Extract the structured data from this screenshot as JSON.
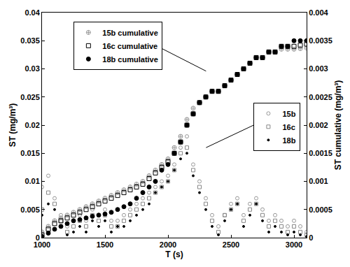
{
  "chart_data": {
    "type": "scatter",
    "x_label": "T (s)",
    "y_label": "ST (mg/m³)",
    "y2_label": "ST cumulative (mg/m³)",
    "xlim": [
      1000,
      3100
    ],
    "xticks": [
      1000,
      1500,
      2000,
      2500,
      3000
    ],
    "ylim": [
      0,
      0.04
    ],
    "yticks": [
      0,
      0.005,
      0.01,
      0.015,
      0.02,
      0.025,
      0.03,
      0.035,
      0.04
    ],
    "y2lim": [
      0,
      0.004
    ],
    "y2ticks": [
      0,
      0.0005,
      0.001,
      0.0015,
      0.002,
      0.0025,
      0.003,
      0.0035,
      0.004
    ],
    "grid": false,
    "legend": "top left",
    "x": [
      1000,
      1050,
      1100,
      1150,
      1200,
      1250,
      1300,
      1350,
      1400,
      1450,
      1500,
      1550,
      1600,
      1650,
      1700,
      1750,
      1800,
      1850,
      1900,
      1950,
      2000,
      2050,
      2100,
      2150,
      2200,
      2250,
      2300,
      2350,
      2400,
      2450,
      2500,
      2550,
      2600,
      2650,
      2700,
      2750,
      2800,
      2850,
      2900,
      2950,
      3000,
      3050,
      3100
    ],
    "series": [
      {
        "name": "15b cumulative",
        "axis": "y2",
        "color": "#999999",
        "marker": "circle-cross-open",
        "values": [
          0.0001,
          0.0002,
          0.0003,
          0.00035,
          0.0004,
          0.00045,
          0.0005,
          0.00055,
          0.0006,
          0.00065,
          0.0007,
          0.00075,
          0.0008,
          0.00085,
          0.0009,
          0.00095,
          0.001,
          0.0011,
          0.0012,
          0.0013,
          0.0014,
          0.0016,
          0.0018,
          0.0021,
          0.0023,
          0.0024,
          0.0025,
          0.0026,
          0.0026,
          0.0027,
          0.0028,
          0.0029,
          0.003,
          0.0031,
          0.0032,
          0.0032,
          0.0033,
          0.0033,
          0.00335,
          0.00335,
          0.00335,
          0.00336,
          0.00337
        ]
      },
      {
        "name": "16c cumulative",
        "axis": "y2",
        "color": "#000000",
        "marker": "square-open",
        "values": [
          5e-05,
          0.00015,
          0.00025,
          0.0003,
          0.00035,
          0.0004,
          0.00045,
          0.0005,
          0.00055,
          0.0006,
          0.00065,
          0.0007,
          0.00075,
          0.0008,
          0.00085,
          0.0009,
          0.00095,
          0.00105,
          0.00115,
          0.00125,
          0.00135,
          0.0015,
          0.0017,
          0.002,
          0.0022,
          0.0024,
          0.0025,
          0.0026,
          0.0026,
          0.0027,
          0.0028,
          0.0029,
          0.003,
          0.0031,
          0.0032,
          0.0032,
          0.0033,
          0.0033,
          0.0034,
          0.0034,
          0.0034,
          0.00342,
          0.00344
        ]
      },
      {
        "name": "18b cumulative",
        "axis": "y2",
        "color": "#000000",
        "marker": "circle",
        "values": [
          2e-05,
          8e-05,
          0.00015,
          0.0002,
          0.00025,
          0.0003,
          0.00032,
          0.00035,
          0.00038,
          0.0004,
          0.00042,
          0.00045,
          0.0005,
          0.00055,
          0.0006,
          0.0007,
          0.0008,
          0.0009,
          0.001,
          0.0012,
          0.0013,
          0.0015,
          0.0017,
          0.002,
          0.0022,
          0.0024,
          0.0025,
          0.0026,
          0.0026,
          0.0027,
          0.0028,
          0.0029,
          0.003,
          0.0031,
          0.0032,
          0.0032,
          0.0033,
          0.0033,
          0.0034,
          0.0034,
          0.0035,
          0.0035,
          0.0035
        ]
      },
      {
        "name": "15b",
        "axis": "y",
        "color": "#999999",
        "marker": "circle-open",
        "values": [
          0.009,
          0.011,
          0.007,
          0.004,
          0.002,
          0.003,
          0.004,
          0.003,
          0.005,
          0.004,
          0.005,
          0.003,
          0.003,
          0.004,
          0.005,
          0.006,
          0.007,
          0.008,
          0.009,
          0.01,
          0.011,
          0.013,
          0.016,
          0.018,
          0.013,
          0.01,
          0.007,
          0.004,
          0.002,
          0.004,
          0.006,
          0.007,
          0.004,
          0.006,
          0.007,
          0.005,
          0.003,
          0.004,
          0.003,
          0.002,
          0.003,
          0.002,
          0.001
        ]
      },
      {
        "name": "16c",
        "axis": "y",
        "color": "#888888",
        "marker": "square-open",
        "values": [
          0.005,
          0.008,
          0.006,
          0.003,
          0.001,
          0.002,
          0.003,
          0.002,
          0.004,
          0.003,
          0.004,
          0.002,
          0.002,
          0.003,
          0.004,
          0.005,
          0.006,
          0.007,
          0.008,
          0.009,
          0.01,
          0.012,
          0.015,
          0.016,
          0.012,
          0.009,
          0.006,
          0.003,
          0.001,
          0.004,
          0.005,
          0.006,
          0.003,
          0.005,
          0.006,
          0.004,
          0.002,
          0.003,
          0.002,
          0.001,
          0.002,
          0.001,
          0.0005
        ]
      },
      {
        "name": "18b",
        "axis": "y",
        "color": "#000000",
        "marker": "circle",
        "values": [
          0.004,
          0.006,
          0.005,
          0.002,
          0.0005,
          0.001,
          0.002,
          0.001,
          0.003,
          0.002,
          0.003,
          0.001,
          0.002,
          0.002,
          0.003,
          0.004,
          0.005,
          0.006,
          0.008,
          0.009,
          0.01,
          0.012,
          0.014,
          0.015,
          0.011,
          0.008,
          0.005,
          0.002,
          0.0005,
          0.003,
          0.005,
          0.006,
          0.002,
          0.004,
          0.006,
          0.003,
          0.001,
          0.002,
          0.001,
          0.0005,
          0.001,
          0.0005,
          0.0002
        ]
      }
    ]
  }
}
